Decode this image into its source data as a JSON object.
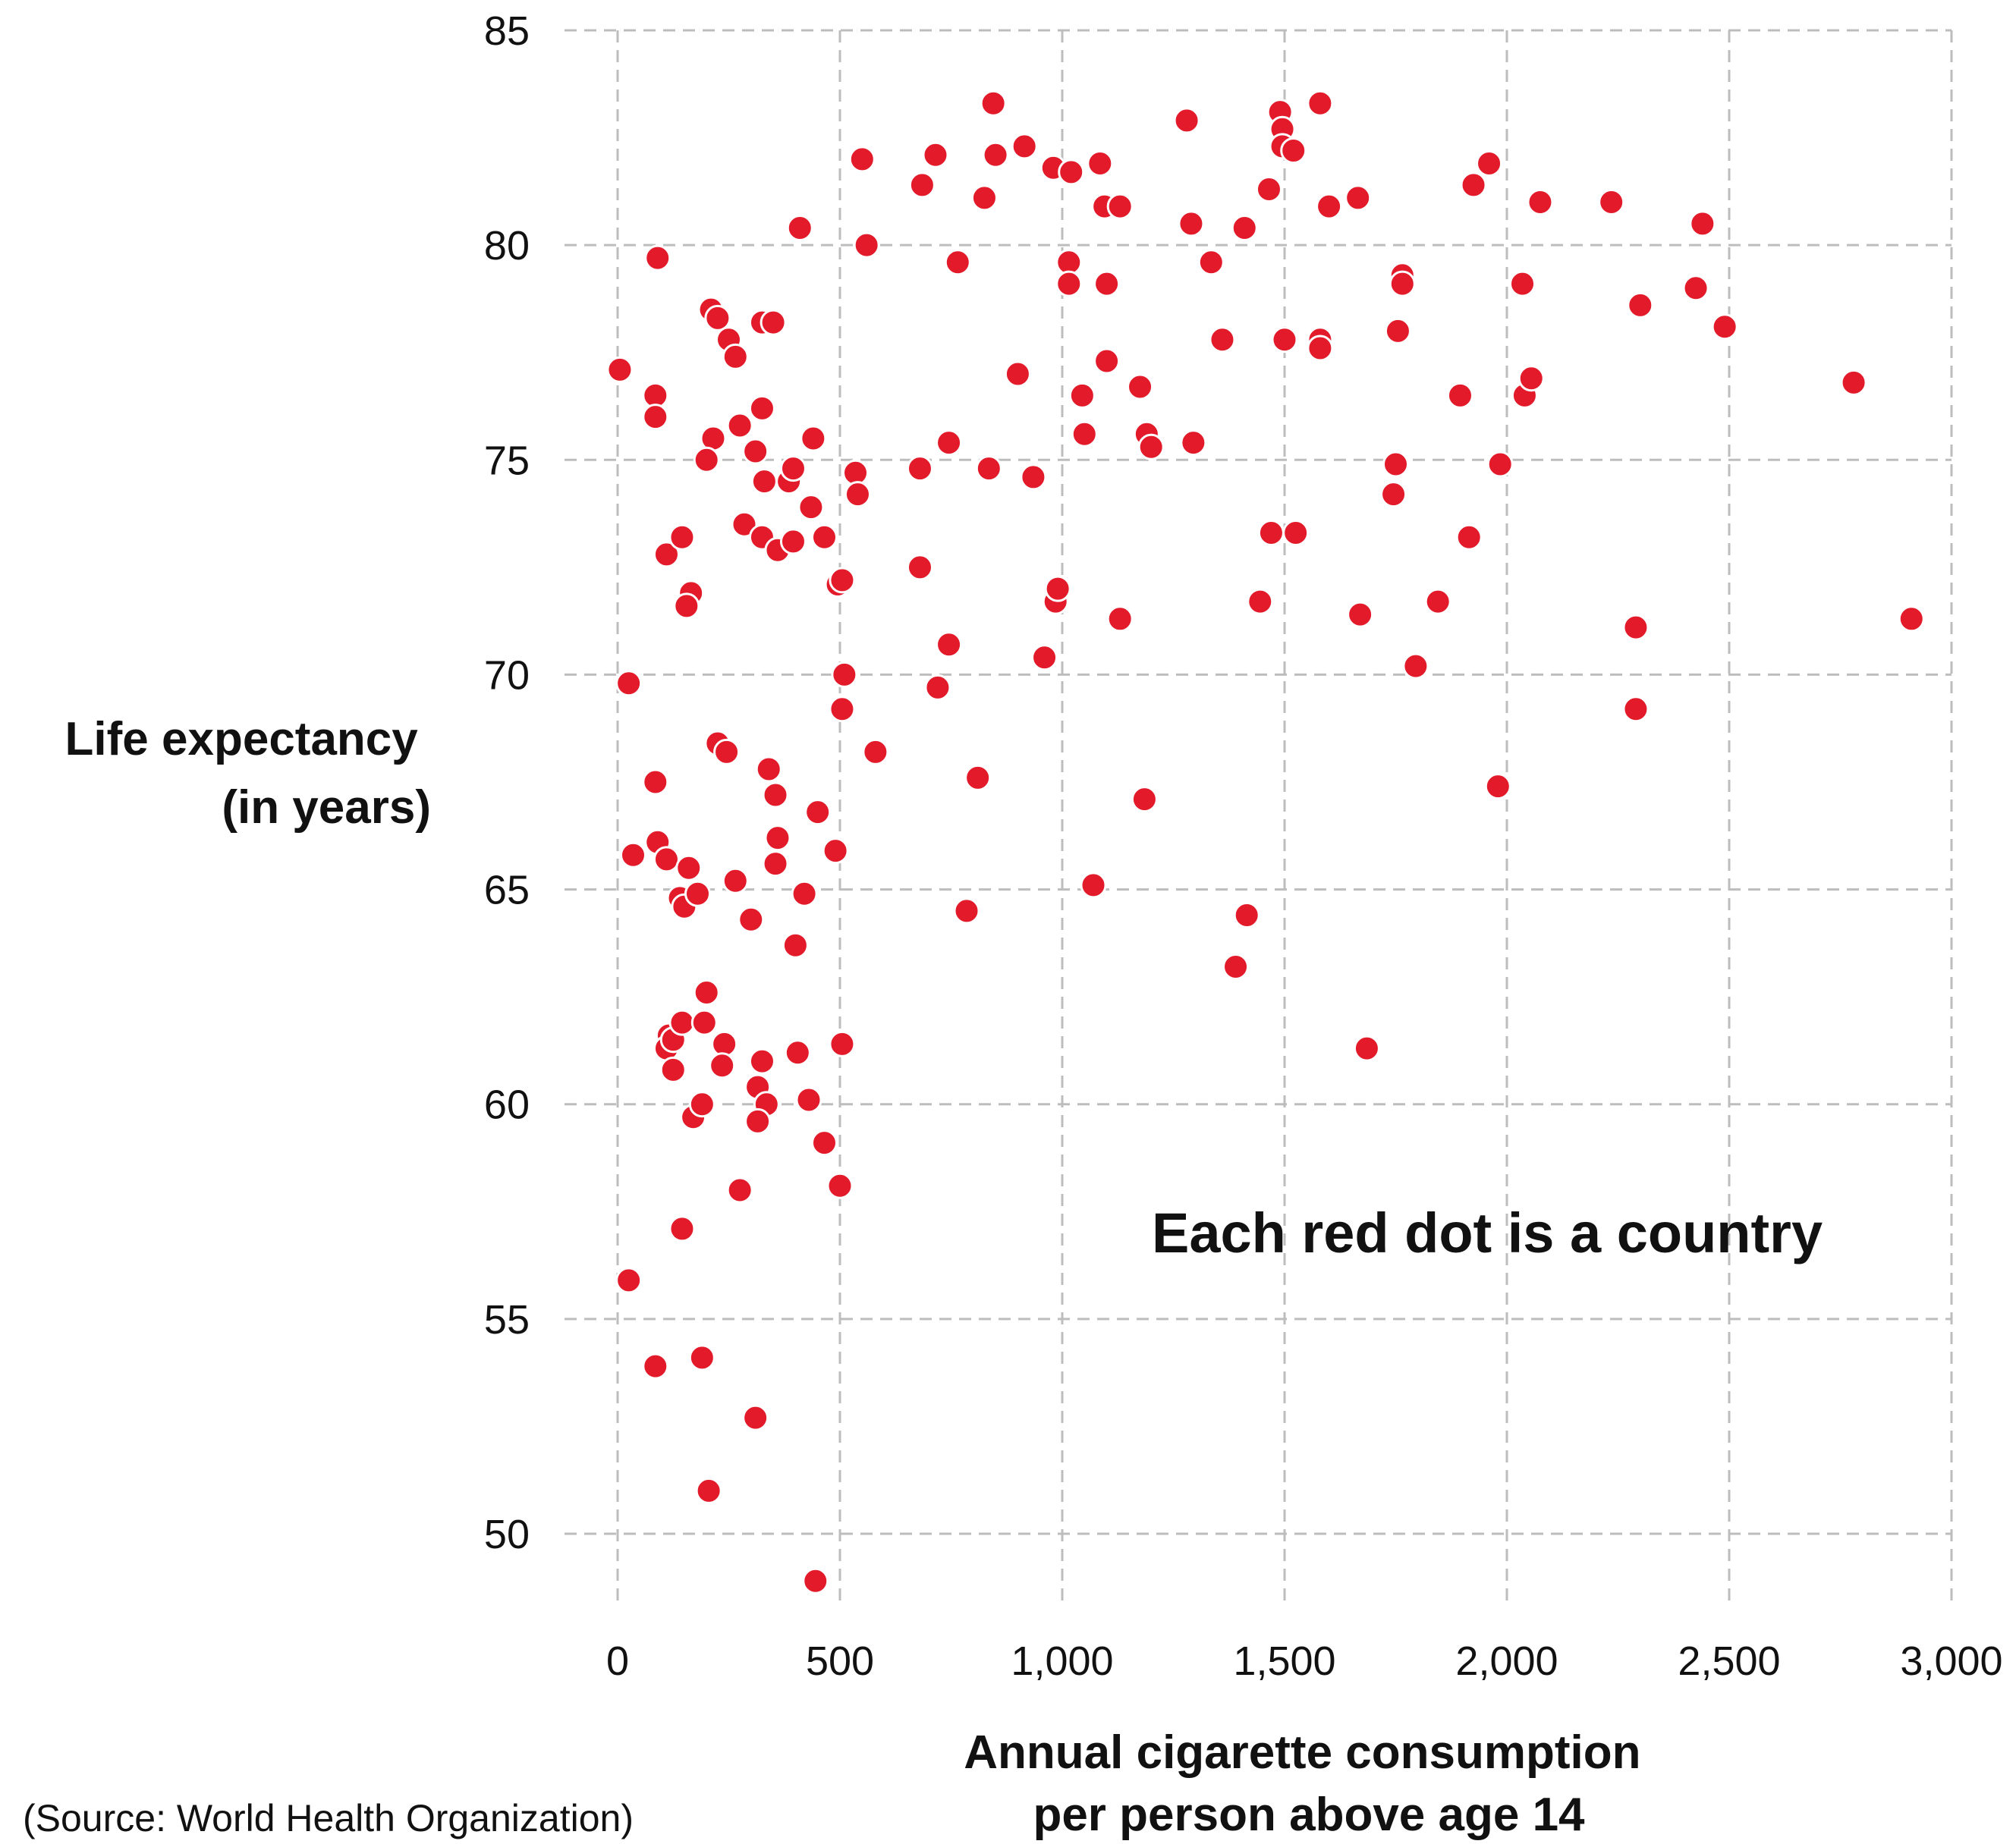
{
  "colors": {
    "point": "#e31a2a",
    "grid": "#bdbdbd",
    "text": "#111111",
    "background": "#ffffff"
  },
  "chart_data": {
    "type": "scatter",
    "title": "",
    "xlabel": [
      "Annual cigarette consumption",
      "per person above age 14"
    ],
    "ylabel": [
      "Life expectancy",
      "(in years)"
    ],
    "xlim": [
      0,
      3000
    ],
    "ylim": [
      48,
      85
    ],
    "grid": true,
    "x_ticks": [
      0,
      500,
      1000,
      1500,
      2000,
      2500,
      3000
    ],
    "x_tick_labels": [
      "0",
      "500",
      "1,000",
      "1,500",
      "2,000",
      "2,500",
      "3,000"
    ],
    "y_ticks": [
      50,
      55,
      60,
      65,
      70,
      75,
      80,
      85
    ],
    "y_tick_labels": [
      "50",
      "55",
      "60",
      "65",
      "70",
      "75",
      "80",
      "85"
    ],
    "annotation": "Each red dot is a country",
    "source": "(Source: World Health Organization)",
    "series": [
      {
        "points": [
          [
            5,
            77.1
          ],
          [
            90,
            79.7
          ],
          [
            85,
            76.5
          ],
          [
            85,
            76.0
          ],
          [
            25,
            69.8
          ],
          [
            35,
            65.8
          ],
          [
            25,
            55.9
          ],
          [
            85,
            67.5
          ],
          [
            90,
            66.1
          ],
          [
            110,
            65.7
          ],
          [
            160,
            65.5
          ],
          [
            140,
            64.8
          ],
          [
            150,
            64.6
          ],
          [
            180,
            64.9
          ],
          [
            110,
            72.8
          ],
          [
            145,
            73.2
          ],
          [
            165,
            71.9
          ],
          [
            155,
            71.6
          ],
          [
            85,
            53.9
          ],
          [
            190,
            54.1
          ],
          [
            145,
            57.1
          ],
          [
            115,
            61.6
          ],
          [
            110,
            61.3
          ],
          [
            125,
            61.5
          ],
          [
            125,
            60.8
          ],
          [
            145,
            61.9
          ],
          [
            195,
            61.9
          ],
          [
            200,
            62.6
          ],
          [
            170,
            59.7
          ],
          [
            190,
            60.0
          ],
          [
            205,
            51.0
          ],
          [
            210,
            78.5
          ],
          [
            225,
            78.3
          ],
          [
            250,
            77.8
          ],
          [
            265,
            77.4
          ],
          [
            215,
            75.5
          ],
          [
            200,
            75.0
          ],
          [
            275,
            75.8
          ],
          [
            225,
            68.4
          ],
          [
            245,
            68.2
          ],
          [
            240,
            61.4
          ],
          [
            235,
            60.9
          ],
          [
            265,
            65.2
          ],
          [
            300,
            64.3
          ],
          [
            285,
            73.5
          ],
          [
            310,
            75.2
          ],
          [
            330,
            74.5
          ],
          [
            325,
            73.2
          ],
          [
            325,
            76.2
          ],
          [
            325,
            78.2
          ],
          [
            350,
            78.2
          ],
          [
            360,
            72.9
          ],
          [
            340,
            67.8
          ],
          [
            355,
            67.2
          ],
          [
            360,
            66.2
          ],
          [
            355,
            65.6
          ],
          [
            325,
            61.0
          ],
          [
            315,
            60.4
          ],
          [
            335,
            60.0
          ],
          [
            315,
            59.6
          ],
          [
            310,
            52.7
          ],
          [
            275,
            58.0
          ],
          [
            385,
            74.5
          ],
          [
            395,
            74.8
          ],
          [
            395,
            73.1
          ],
          [
            410,
            80.4
          ],
          [
            435,
            73.9
          ],
          [
            440,
            75.5
          ],
          [
            420,
            64.9
          ],
          [
            400,
            63.7
          ],
          [
            405,
            61.2
          ],
          [
            430,
            60.1
          ],
          [
            450,
            66.8
          ],
          [
            465,
            59.1
          ],
          [
            445,
            48.9
          ],
          [
            465,
            73.2
          ],
          [
            495,
            72.1
          ],
          [
            505,
            72.2
          ],
          [
            490,
            65.9
          ],
          [
            500,
            58.1
          ],
          [
            505,
            61.4
          ],
          [
            510,
            70.0
          ],
          [
            505,
            69.2
          ],
          [
            535,
            74.7
          ],
          [
            540,
            74.2
          ],
          [
            550,
            82.0
          ],
          [
            560,
            80.0
          ],
          [
            580,
            68.2
          ],
          [
            680,
            72.5
          ],
          [
            685,
            81.4
          ],
          [
            680,
            74.8
          ],
          [
            715,
            82.1
          ],
          [
            720,
            69.7
          ],
          [
            745,
            75.4
          ],
          [
            745,
            70.7
          ],
          [
            765,
            79.6
          ],
          [
            785,
            64.5
          ],
          [
            810,
            67.6
          ],
          [
            825,
            81.1
          ],
          [
            835,
            74.8
          ],
          [
            845,
            83.3
          ],
          [
            850,
            82.1
          ],
          [
            900,
            77.0
          ],
          [
            915,
            82.3
          ],
          [
            935,
            74.6
          ],
          [
            960,
            70.4
          ],
          [
            980,
            81.8
          ],
          [
            985,
            71.7
          ],
          [
            990,
            72.0
          ],
          [
            1015,
            79.6
          ],
          [
            1020,
            81.7
          ],
          [
            1015,
            79.1
          ],
          [
            1045,
            76.5
          ],
          [
            1050,
            75.6
          ],
          [
            1070,
            65.1
          ],
          [
            1085,
            81.9
          ],
          [
            1095,
            80.9
          ],
          [
            1100,
            79.1
          ],
          [
            1100,
            77.3
          ],
          [
            1130,
            80.9
          ],
          [
            1130,
            71.3
          ],
          [
            1175,
            76.7
          ],
          [
            1185,
            67.1
          ],
          [
            1190,
            75.6
          ],
          [
            1200,
            75.3
          ],
          [
            1280,
            82.9
          ],
          [
            1290,
            80.5
          ],
          [
            1295,
            75.4
          ],
          [
            1335,
            79.6
          ],
          [
            1360,
            77.8
          ],
          [
            1390,
            63.2
          ],
          [
            1410,
            80.4
          ],
          [
            1415,
            64.4
          ],
          [
            1445,
            71.7
          ],
          [
            1465,
            81.3
          ],
          [
            1470,
            73.3
          ],
          [
            1490,
            83.1
          ],
          [
            1495,
            82.7
          ],
          [
            1495,
            82.3
          ],
          [
            1500,
            77.8
          ],
          [
            1520,
            82.2
          ],
          [
            1525,
            73.3
          ],
          [
            1580,
            83.3
          ],
          [
            1580,
            77.8
          ],
          [
            1580,
            77.6
          ],
          [
            1600,
            80.9
          ],
          [
            1665,
            81.1
          ],
          [
            1670,
            71.4
          ],
          [
            1685,
            61.3
          ],
          [
            1745,
            74.2
          ],
          [
            1750,
            74.9
          ],
          [
            1755,
            78.0
          ],
          [
            1765,
            79.3
          ],
          [
            1765,
            79.1
          ],
          [
            1795,
            70.2
          ],
          [
            1845,
            71.7
          ],
          [
            1895,
            76.5
          ],
          [
            1915,
            73.2
          ],
          [
            1925,
            81.4
          ],
          [
            1960,
            81.9
          ],
          [
            1980,
            67.4
          ],
          [
            1985,
            74.9
          ],
          [
            2035,
            79.1
          ],
          [
            2040,
            76.5
          ],
          [
            2055,
            76.9
          ],
          [
            2075,
            81.0
          ],
          [
            2235,
            81.0
          ],
          [
            2290,
            71.1
          ],
          [
            2290,
            69.2
          ],
          [
            2300,
            78.6
          ],
          [
            2425,
            79.0
          ],
          [
            2440,
            80.5
          ],
          [
            2490,
            78.1
          ],
          [
            2780,
            76.8
          ],
          [
            2910,
            71.3
          ]
        ]
      }
    ]
  }
}
